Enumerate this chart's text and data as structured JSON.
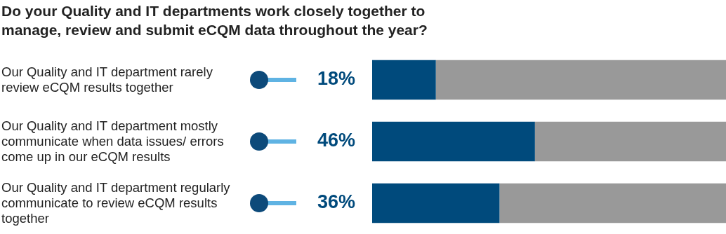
{
  "chart_data": {
    "type": "bar",
    "orientation": "horizontal",
    "stacked": true,
    "title": "Do your Quality and IT departments work closely together to manage, review and submit eCQM data throughout the year?",
    "categories": [
      "Our Quality and IT department rarely review eCQM results together",
      "Our Quality and IT department mostly communicate when data issues/ errors come up in our eCQM results",
      "Our Quality and IT department regularly communicate to review eCQM results together"
    ],
    "series": [
      {
        "color": "#004a7c",
        "values": [
          18,
          46,
          36
        ],
        "value_labels": [
          "18%",
          "46%",
          "36%"
        ]
      },
      {
        "color": "#999999",
        "values": [
          82,
          54,
          64
        ]
      }
    ],
    "xlim": [
      0,
      100
    ],
    "tick_labels": false,
    "legend": false
  }
}
